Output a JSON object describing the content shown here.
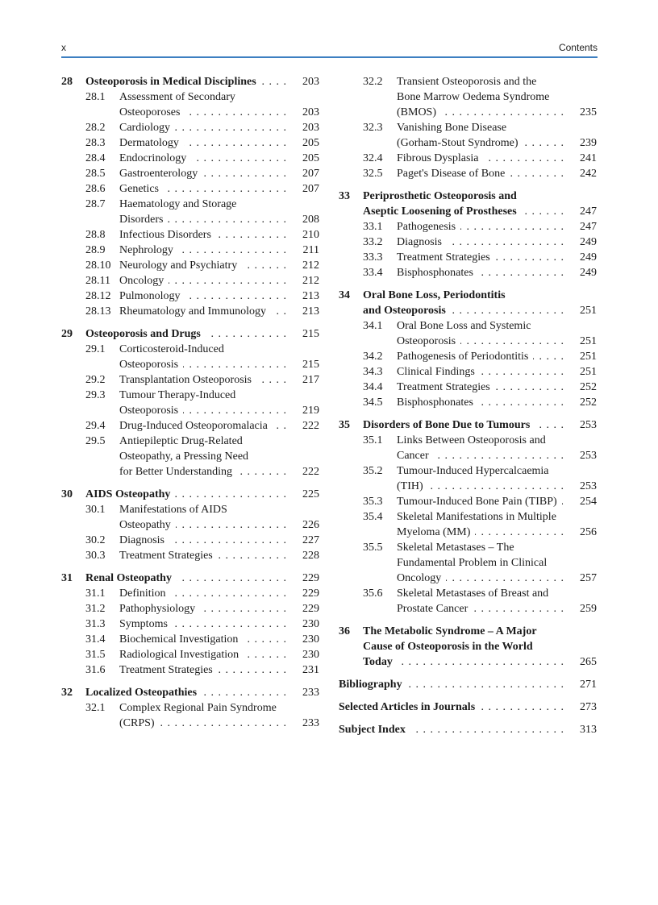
{
  "header": {
    "page_number": "x",
    "running_title": "Contents"
  },
  "header_rule_color": "#3d7fc1",
  "columns": [
    [
      {
        "type": "chapter",
        "num": "28",
        "lines": [
          "Osteoporosis in Medical Disciplines"
        ],
        "page": "203"
      },
      {
        "type": "section",
        "num": "28.1",
        "lines": [
          "Assessment of Secondary",
          "Osteoporoses"
        ],
        "page": "203"
      },
      {
        "type": "section",
        "num": "28.2",
        "lines": [
          "Cardiology"
        ],
        "page": "203"
      },
      {
        "type": "section",
        "num": "28.3",
        "lines": [
          "Dermatology"
        ],
        "page": "205"
      },
      {
        "type": "section",
        "num": "28.4",
        "lines": [
          "Endocrinology"
        ],
        "page": "205"
      },
      {
        "type": "section",
        "num": "28.5",
        "lines": [
          "Gastroenterology"
        ],
        "page": "207"
      },
      {
        "type": "section",
        "num": "28.6",
        "lines": [
          "Genetics"
        ],
        "page": "207"
      },
      {
        "type": "section",
        "num": "28.7",
        "lines": [
          "Haematology and Storage",
          "Disorders"
        ],
        "page": "208"
      },
      {
        "type": "section",
        "num": "28.8",
        "lines": [
          "Infectious Disorders"
        ],
        "page": "210"
      },
      {
        "type": "section",
        "num": "28.9",
        "lines": [
          "Nephrology"
        ],
        "page": "211"
      },
      {
        "type": "section",
        "num": "28.10",
        "lines": [
          "Neurology and Psychiatry"
        ],
        "page": "212"
      },
      {
        "type": "section",
        "num": "28.11",
        "lines": [
          "Oncology"
        ],
        "page": "212"
      },
      {
        "type": "section",
        "num": "28.12",
        "lines": [
          "Pulmonology"
        ],
        "page": "213"
      },
      {
        "type": "section",
        "num": "28.13",
        "lines": [
          "Rheumatology and Immunology"
        ],
        "page": "213"
      },
      {
        "type": "chapter",
        "num": "29",
        "lines": [
          "Osteoporosis and Drugs"
        ],
        "page": "215"
      },
      {
        "type": "section",
        "num": "29.1",
        "lines": [
          "Corticosteroid-Induced",
          "Osteoporosis"
        ],
        "page": "215"
      },
      {
        "type": "section",
        "num": "29.2",
        "lines": [
          "Transplantation Osteoporosis"
        ],
        "page": "217"
      },
      {
        "type": "section",
        "num": "29.3",
        "lines": [
          "Tumour Therapy-Induced",
          "Osteoporosis"
        ],
        "page": "219"
      },
      {
        "type": "section",
        "num": "29.4",
        "lines": [
          "Drug-Induced Osteoporomalacia"
        ],
        "page": "222"
      },
      {
        "type": "section",
        "num": "29.5",
        "lines": [
          "Antiepileptic Drug-Related",
          "Osteopathy, a Pressing Need",
          "for Better Understanding"
        ],
        "page": "222"
      },
      {
        "type": "chapter",
        "num": "30",
        "lines": [
          "AIDS Osteopathy"
        ],
        "page": "225"
      },
      {
        "type": "section",
        "num": "30.1",
        "lines": [
          "Manifestations of AIDS",
          "Osteopathy"
        ],
        "page": "226"
      },
      {
        "type": "section",
        "num": "30.2",
        "lines": [
          "Diagnosis"
        ],
        "page": "227"
      },
      {
        "type": "section",
        "num": "30.3",
        "lines": [
          "Treatment Strategies"
        ],
        "page": "228"
      },
      {
        "type": "chapter",
        "num": "31",
        "lines": [
          "Renal Osteopathy"
        ],
        "page": "229"
      },
      {
        "type": "section",
        "num": "31.1",
        "lines": [
          "Definition"
        ],
        "page": "229"
      },
      {
        "type": "section",
        "num": "31.2",
        "lines": [
          "Pathophysiology"
        ],
        "page": "229"
      },
      {
        "type": "section",
        "num": "31.3",
        "lines": [
          "Symptoms"
        ],
        "page": "230"
      },
      {
        "type": "section",
        "num": "31.4",
        "lines": [
          "Biochemical Investigation"
        ],
        "page": "230"
      },
      {
        "type": "section",
        "num": "31.5",
        "lines": [
          "Radiological Investigation"
        ],
        "page": "230"
      },
      {
        "type": "section",
        "num": "31.6",
        "lines": [
          "Treatment Strategies"
        ],
        "page": "231"
      },
      {
        "type": "chapter",
        "num": "32",
        "lines": [
          "Localized Osteopathies"
        ],
        "page": "233"
      },
      {
        "type": "section",
        "num": "32.1",
        "lines": [
          "Complex Regional Pain Syndrome",
          "(CRPS)"
        ],
        "page": "233"
      }
    ],
    [
      {
        "type": "section",
        "num": "32.2",
        "lines": [
          "Transient Osteoporosis and the",
          "Bone Marrow Oedema Syndrome",
          "(BMOS)"
        ],
        "page": "235"
      },
      {
        "type": "section",
        "num": "32.3",
        "lines": [
          "Vanishing Bone Disease",
          "(Gorham-Stout Syndrome)"
        ],
        "page": "239"
      },
      {
        "type": "section",
        "num": "32.4",
        "lines": [
          "Fibrous Dysplasia"
        ],
        "page": "241"
      },
      {
        "type": "section",
        "num": "32.5",
        "lines": [
          "Paget's Disease of Bone"
        ],
        "page": "242"
      },
      {
        "type": "chapter",
        "num": "33",
        "lines": [
          "Periprosthetic Osteoporosis and",
          "Aseptic Loosening of Prostheses"
        ],
        "page": "247"
      },
      {
        "type": "section",
        "num": "33.1",
        "lines": [
          "Pathogenesis"
        ],
        "page": "247"
      },
      {
        "type": "section",
        "num": "33.2",
        "lines": [
          "Diagnosis"
        ],
        "page": "249"
      },
      {
        "type": "section",
        "num": "33.3",
        "lines": [
          "Treatment Strategies"
        ],
        "page": "249"
      },
      {
        "type": "section",
        "num": "33.4",
        "lines": [
          "Bisphosphonates"
        ],
        "page": "249"
      },
      {
        "type": "chapter",
        "num": "34",
        "lines": [
          "Oral Bone Loss, Periodontitis",
          "and Osteoporosis"
        ],
        "page": "251"
      },
      {
        "type": "section",
        "num": "34.1",
        "lines": [
          "Oral Bone Loss and Systemic",
          "Osteoporosis"
        ],
        "page": "251"
      },
      {
        "type": "section",
        "num": "34.2",
        "lines": [
          "Pathogenesis of Periodontitis"
        ],
        "page": "251"
      },
      {
        "type": "section",
        "num": "34.3",
        "lines": [
          "Clinical Findings"
        ],
        "page": "251"
      },
      {
        "type": "section",
        "num": "34.4",
        "lines": [
          "Treatment Strategies"
        ],
        "page": "252"
      },
      {
        "type": "section",
        "num": "34.5",
        "lines": [
          "Bisphosphonates"
        ],
        "page": "252"
      },
      {
        "type": "chapter",
        "num": "35",
        "lines": [
          "Disorders of Bone Due to Tumours"
        ],
        "page": "253"
      },
      {
        "type": "section",
        "num": "35.1",
        "lines": [
          "Links Between Osteoporosis and",
          "Cancer"
        ],
        "page": "253"
      },
      {
        "type": "section",
        "num": "35.2",
        "lines": [
          "Tumour-Induced Hypercalcaemia",
          "(TIH)"
        ],
        "page": "253"
      },
      {
        "type": "section",
        "num": "35.3",
        "lines": [
          "Tumour-Induced Bone Pain (TIBP)"
        ],
        "page": "254"
      },
      {
        "type": "section",
        "num": "35.4",
        "lines": [
          "Skeletal Manifestations in Multiple",
          "Myeloma (MM)"
        ],
        "page": "256"
      },
      {
        "type": "section",
        "num": "35.5",
        "lines": [
          "Skeletal Metastases – The",
          "Fundamental Problem in Clinical",
          "Oncology"
        ],
        "page": "257"
      },
      {
        "type": "section",
        "num": "35.6",
        "lines": [
          "Skeletal Metastases of Breast and",
          "Prostate Cancer"
        ],
        "page": "259"
      },
      {
        "type": "chapter",
        "num": "36",
        "lines": [
          "The Metabolic Syndrome – A Major",
          "Cause of Osteoporosis in the World",
          "Today"
        ],
        "page": "265"
      },
      {
        "type": "back",
        "num": "",
        "lines": [
          "Bibliography"
        ],
        "page": "271"
      },
      {
        "type": "back",
        "num": "",
        "lines": [
          "Selected Articles in Journals"
        ],
        "page": "273"
      },
      {
        "type": "back",
        "num": "",
        "lines": [
          "Subject Index"
        ],
        "page": "313"
      }
    ]
  ]
}
